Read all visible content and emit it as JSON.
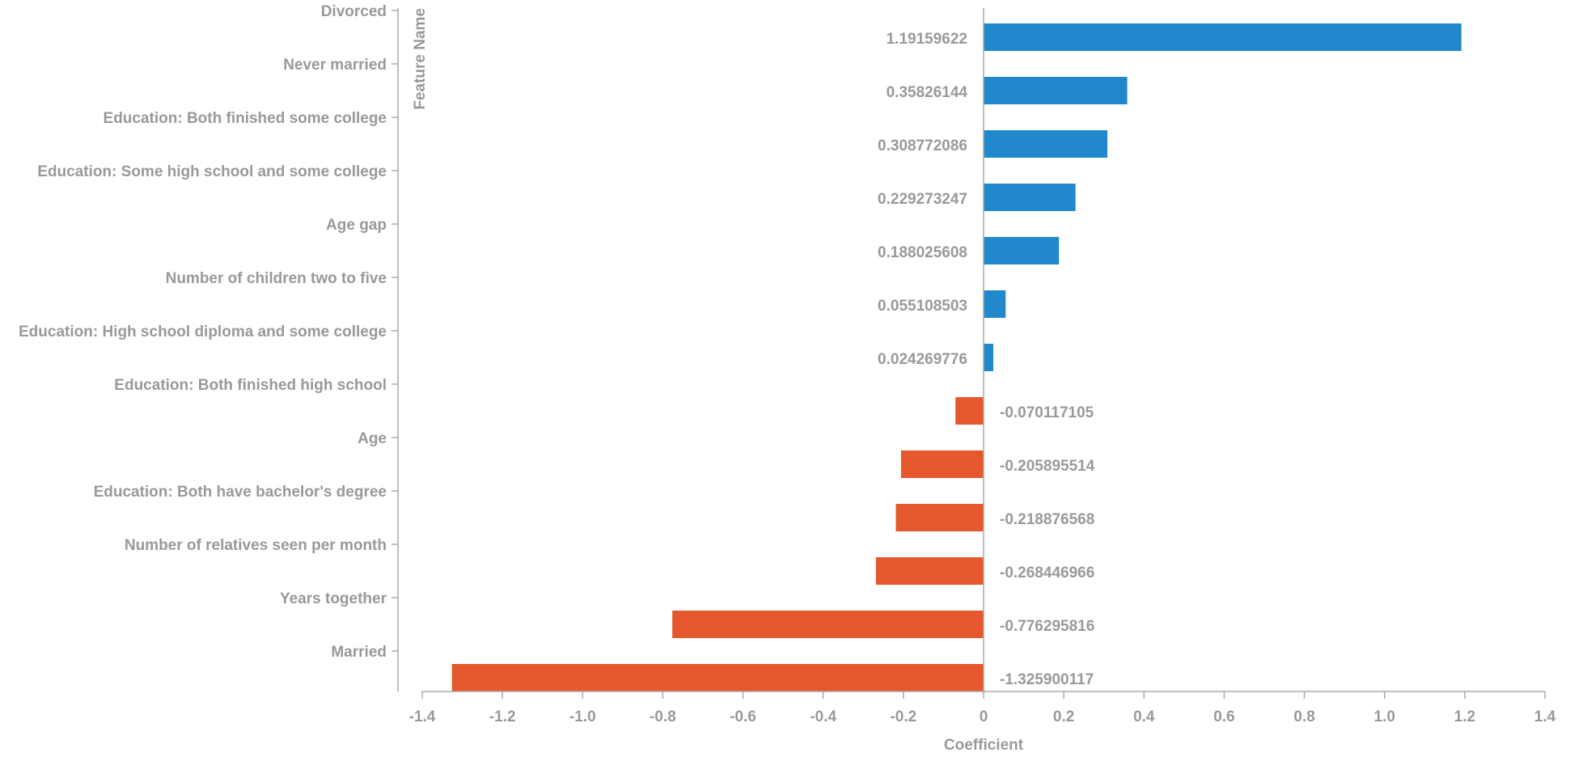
{
  "chart_data": {
    "type": "bar",
    "orientation": "horizontal",
    "title": "",
    "xlabel": "Coefficient",
    "ylabel": "Feature Name",
    "xlim": [
      -1.4,
      1.4
    ],
    "xticks": [
      -1.4,
      -1.2,
      -1.0,
      -0.8,
      -0.6,
      -0.4,
      -0.2,
      0,
      0.2,
      0.4,
      0.6,
      0.8,
      1.0,
      1.2,
      1.4
    ],
    "xtick_labels": [
      "-1.4",
      "-1.2",
      "-1.0",
      "-0.8",
      "-0.6",
      "-0.4",
      "-0.2",
      "0",
      "0.2",
      "0.4",
      "0.6",
      "0.8",
      "1.0",
      "1.2",
      "1.4"
    ],
    "grid": false,
    "legend": "none",
    "colors": {
      "positive": "#2288cc",
      "negative": "#e5582d",
      "axis": "#aaaaaa",
      "text": "#999999"
    },
    "categories": [
      "Divorced",
      "Never married",
      "Education: Both finished some college",
      "Education: Some high school and some college",
      "Age gap",
      "Number of children two to five",
      "Education: High school diploma and some college",
      "Education: Both finished high school",
      "Age",
      "Education: Both have bachelor's degree",
      "Number of relatives seen per month",
      "Years together",
      "Married"
    ],
    "values": [
      1.19159622,
      0.35826144,
      0.308772086,
      0.229273247,
      0.188025608,
      0.055108503,
      0.024269776,
      -0.070117105,
      -0.205895514,
      -0.218876568,
      -0.268446966,
      -0.776295816,
      -1.325900117
    ],
    "value_labels": [
      "1.19159622",
      "0.35826144",
      "0.308772086",
      "0.229273247",
      "0.188025608",
      "0.055108503",
      "0.024269776",
      "-0.070117105",
      "-0.205895514",
      "-0.218876568",
      "-0.268446966",
      "-0.776295816",
      "-1.325900117"
    ]
  }
}
